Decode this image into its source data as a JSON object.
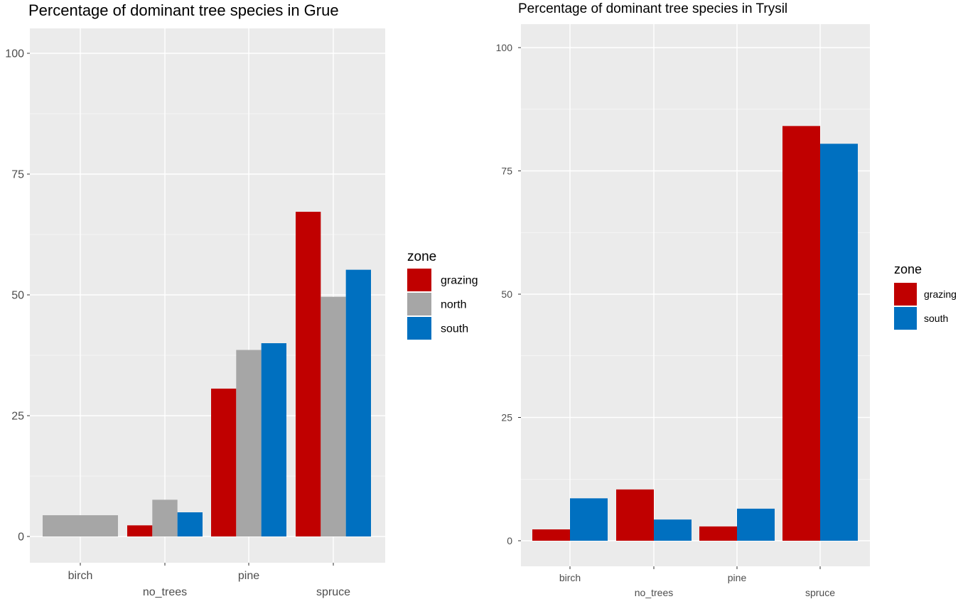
{
  "legend_title": "zone",
  "colors": {
    "grazing": "#c00000",
    "north": "#a6a6a6",
    "south": "#0070c0",
    "panel": "#ebebeb",
    "grid": "#ffffff",
    "tick_text": "#4d4d4d"
  },
  "chart_data": [
    {
      "type": "bar",
      "title": "Percentage of dominant tree species in Grue",
      "xlabel": "",
      "ylabel": "",
      "categories": [
        "birch",
        "no_trees",
        "pine",
        "spruce"
      ],
      "ylim": [
        -5,
        105
      ],
      "yticks": [
        0,
        25,
        50,
        75,
        100
      ],
      "grid": true,
      "legend_position": "right",
      "series": [
        {
          "name": "grazing",
          "values": [
            null,
            2.3,
            30.6,
            67.2
          ]
        },
        {
          "name": "north",
          "values": [
            4.4,
            7.6,
            38.6,
            49.6
          ]
        },
        {
          "name": "south",
          "values": [
            null,
            5.0,
            40.0,
            55.2
          ]
        }
      ],
      "single_bar_series": {
        "birch": "north"
      }
    },
    {
      "type": "bar",
      "title": "Percentage of dominant tree species in Trysil",
      "xlabel": "",
      "ylabel": "",
      "categories": [
        "birch",
        "no_trees",
        "pine",
        "spruce"
      ],
      "ylim": [
        -5,
        105
      ],
      "yticks": [
        0,
        25,
        50,
        75,
        100
      ],
      "grid": true,
      "legend_position": "right",
      "series": [
        {
          "name": "grazing",
          "values": [
            2.3,
            10.4,
            2.9,
            84.1
          ]
        },
        {
          "name": "south",
          "values": [
            8.6,
            4.3,
            6.5,
            80.5
          ]
        }
      ]
    }
  ]
}
